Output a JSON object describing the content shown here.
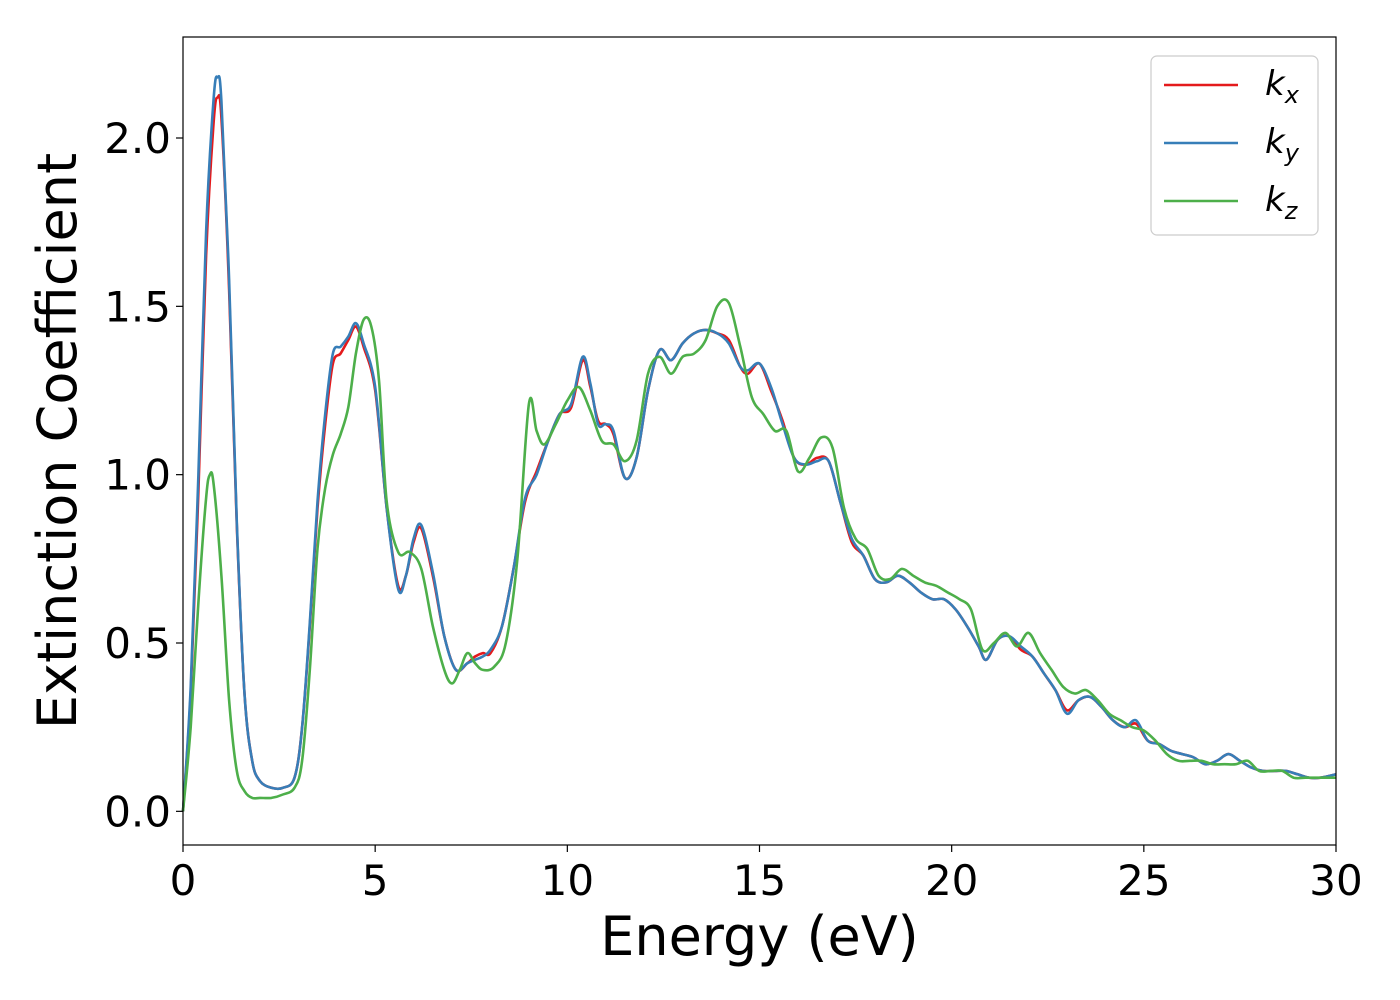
{
  "chart_data": {
    "type": "line",
    "xlabel": "Energy (eV)",
    "ylabel": "Extinction Coefficient",
    "xlim": [
      0,
      30
    ],
    "ylim": [
      -0.1,
      2.3
    ],
    "xticks": [
      0,
      5,
      10,
      15,
      20,
      25,
      30
    ],
    "xtick_labels": [
      "0",
      "5",
      "10",
      "15",
      "20",
      "25",
      "30"
    ],
    "yticks": [
      0.0,
      0.5,
      1.0,
      1.5,
      2.0
    ],
    "ytick_labels": [
      "0.0",
      "0.5",
      "1.0",
      "1.5",
      "2.0"
    ],
    "grid": false,
    "legend_position": "top-right",
    "series": [
      {
        "name": "k_x",
        "legend_main": "k",
        "legend_sub": "x",
        "color": "#e41a1c",
        "x": [
          0,
          0.2,
          0.4,
          0.6,
          0.8,
          0.9,
          1.0,
          1.2,
          1.4,
          1.6,
          1.8,
          2.0,
          2.3,
          2.6,
          2.9,
          3.1,
          3.3,
          3.5,
          3.7,
          3.9,
          4.1,
          4.3,
          4.5,
          4.7,
          5.0,
          5.3,
          5.6,
          5.8,
          6.0,
          6.2,
          6.5,
          6.8,
          7.1,
          7.4,
          7.6,
          7.8,
          8.0,
          8.3,
          8.6,
          8.9,
          9.2,
          9.5,
          9.8,
          10.1,
          10.4,
          10.6,
          10.8,
          11.0,
          11.2,
          11.5,
          11.8,
          12.1,
          12.4,
          12.7,
          13.0,
          13.3,
          13.6,
          13.9,
          14.2,
          14.5,
          14.7,
          15.0,
          15.3,
          15.6,
          15.9,
          16.2,
          16.5,
          16.8,
          17.1,
          17.4,
          17.7,
          18.0,
          18.3,
          18.6,
          18.9,
          19.2,
          19.5,
          19.8,
          20.1,
          20.4,
          20.7,
          20.9,
          21.2,
          21.5,
          21.8,
          22.1,
          22.4,
          22.7,
          23.0,
          23.3,
          23.6,
          23.9,
          24.2,
          24.5,
          24.8,
          25.1,
          25.4,
          25.7,
          26.0,
          26.3,
          26.6,
          26.9,
          27.2,
          27.5,
          27.8,
          28.1,
          28.4,
          28.7,
          29.0,
          29.3,
          29.6,
          30.0
        ],
        "values": [
          0.0,
          0.35,
          0.95,
          1.65,
          2.05,
          2.12,
          2.06,
          1.55,
          0.85,
          0.35,
          0.15,
          0.09,
          0.07,
          0.07,
          0.1,
          0.25,
          0.55,
          0.9,
          1.15,
          1.33,
          1.36,
          1.4,
          1.44,
          1.38,
          1.25,
          0.9,
          0.67,
          0.7,
          0.8,
          0.84,
          0.7,
          0.52,
          0.42,
          0.44,
          0.46,
          0.47,
          0.47,
          0.55,
          0.72,
          0.92,
          1.01,
          1.1,
          1.18,
          1.2,
          1.34,
          1.26,
          1.16,
          1.15,
          1.12,
          0.99,
          1.05,
          1.25,
          1.37,
          1.34,
          1.39,
          1.42,
          1.43,
          1.42,
          1.4,
          1.32,
          1.3,
          1.33,
          1.25,
          1.16,
          1.05,
          1.03,
          1.05,
          1.04,
          0.92,
          0.8,
          0.76,
          0.69,
          0.68,
          0.7,
          0.68,
          0.65,
          0.63,
          0.63,
          0.6,
          0.55,
          0.49,
          0.45,
          0.51,
          0.52,
          0.48,
          0.46,
          0.41,
          0.36,
          0.3,
          0.33,
          0.34,
          0.31,
          0.27,
          0.25,
          0.26,
          0.21,
          0.2,
          0.18,
          0.17,
          0.16,
          0.14,
          0.15,
          0.17,
          0.15,
          0.13,
          0.12,
          0.12,
          0.12,
          0.11,
          0.1,
          0.1,
          0.11
        ]
      },
      {
        "name": "k_y",
        "legend_main": "k",
        "legend_sub": "y",
        "color": "#377eb8",
        "x": [
          0,
          0.2,
          0.4,
          0.6,
          0.8,
          0.9,
          1.0,
          1.2,
          1.4,
          1.6,
          1.8,
          2.0,
          2.3,
          2.6,
          2.9,
          3.1,
          3.3,
          3.5,
          3.7,
          3.9,
          4.1,
          4.3,
          4.5,
          4.7,
          5.0,
          5.3,
          5.6,
          5.8,
          6.0,
          6.2,
          6.5,
          6.8,
          7.1,
          7.4,
          7.6,
          7.8,
          8.0,
          8.3,
          8.6,
          8.9,
          9.2,
          9.5,
          9.8,
          10.1,
          10.4,
          10.6,
          10.8,
          11.0,
          11.2,
          11.5,
          11.8,
          12.1,
          12.4,
          12.7,
          13.0,
          13.3,
          13.6,
          13.9,
          14.2,
          14.5,
          14.7,
          15.0,
          15.3,
          15.6,
          15.9,
          16.2,
          16.5,
          16.8,
          17.1,
          17.4,
          17.7,
          18.0,
          18.3,
          18.6,
          18.9,
          19.2,
          19.5,
          19.8,
          20.1,
          20.4,
          20.7,
          20.9,
          21.2,
          21.5,
          21.8,
          22.1,
          22.4,
          22.7,
          23.0,
          23.3,
          23.6,
          23.9,
          24.2,
          24.5,
          24.8,
          25.1,
          25.4,
          25.7,
          26.0,
          26.3,
          26.6,
          26.9,
          27.2,
          27.5,
          27.8,
          28.1,
          28.4,
          28.7,
          29.0,
          29.3,
          29.6,
          30.0
        ],
        "values": [
          0.0,
          0.37,
          1.0,
          1.72,
          2.12,
          2.18,
          2.11,
          1.58,
          0.86,
          0.35,
          0.15,
          0.09,
          0.07,
          0.07,
          0.1,
          0.25,
          0.56,
          0.92,
          1.18,
          1.36,
          1.38,
          1.41,
          1.45,
          1.39,
          1.26,
          0.9,
          0.66,
          0.7,
          0.81,
          0.85,
          0.71,
          0.52,
          0.42,
          0.44,
          0.45,
          0.46,
          0.48,
          0.55,
          0.72,
          0.93,
          1.0,
          1.1,
          1.18,
          1.21,
          1.35,
          1.27,
          1.15,
          1.15,
          1.13,
          0.99,
          1.05,
          1.25,
          1.37,
          1.34,
          1.39,
          1.42,
          1.43,
          1.42,
          1.39,
          1.32,
          1.31,
          1.33,
          1.26,
          1.15,
          1.05,
          1.03,
          1.04,
          1.04,
          0.92,
          0.81,
          0.76,
          0.69,
          0.68,
          0.7,
          0.68,
          0.65,
          0.63,
          0.63,
          0.6,
          0.55,
          0.49,
          0.45,
          0.51,
          0.52,
          0.49,
          0.46,
          0.41,
          0.36,
          0.29,
          0.33,
          0.34,
          0.31,
          0.27,
          0.25,
          0.27,
          0.21,
          0.2,
          0.18,
          0.17,
          0.16,
          0.14,
          0.15,
          0.17,
          0.15,
          0.13,
          0.12,
          0.12,
          0.12,
          0.11,
          0.1,
          0.1,
          0.11
        ]
      },
      {
        "name": "k_z",
        "legend_main": "k",
        "legend_sub": "z",
        "color": "#4daf4a",
        "x": [
          0,
          0.2,
          0.4,
          0.6,
          0.7,
          0.8,
          1.0,
          1.2,
          1.4,
          1.6,
          1.8,
          2.0,
          2.3,
          2.6,
          2.9,
          3.1,
          3.3,
          3.5,
          3.7,
          3.9,
          4.1,
          4.3,
          4.5,
          4.7,
          4.9,
          5.1,
          5.3,
          5.6,
          5.9,
          6.2,
          6.5,
          6.8,
          7.0,
          7.2,
          7.4,
          7.6,
          7.8,
          8.1,
          8.4,
          8.7,
          9.0,
          9.2,
          9.4,
          9.7,
          10.0,
          10.3,
          10.6,
          10.9,
          11.2,
          11.5,
          11.8,
          12.1,
          12.4,
          12.7,
          13.0,
          13.3,
          13.6,
          13.9,
          14.2,
          14.5,
          14.8,
          15.1,
          15.4,
          15.7,
          16.0,
          16.3,
          16.6,
          16.9,
          17.2,
          17.5,
          17.8,
          18.1,
          18.4,
          18.7,
          19.0,
          19.3,
          19.6,
          19.9,
          20.2,
          20.5,
          20.8,
          21.1,
          21.4,
          21.7,
          22.0,
          22.3,
          22.6,
          22.9,
          23.2,
          23.5,
          23.8,
          24.1,
          24.4,
          24.7,
          25.0,
          25.3,
          25.6,
          25.9,
          26.2,
          26.5,
          26.8,
          27.1,
          27.4,
          27.7,
          28.0,
          28.3,
          28.6,
          28.9,
          29.2,
          29.5,
          30.0
        ],
        "values": [
          0.0,
          0.25,
          0.62,
          0.93,
          1.0,
          0.97,
          0.7,
          0.33,
          0.12,
          0.06,
          0.04,
          0.04,
          0.04,
          0.05,
          0.07,
          0.15,
          0.42,
          0.78,
          0.96,
          1.06,
          1.12,
          1.2,
          1.36,
          1.46,
          1.44,
          1.28,
          0.92,
          0.77,
          0.77,
          0.72,
          0.55,
          0.42,
          0.38,
          0.42,
          0.47,
          0.44,
          0.42,
          0.43,
          0.5,
          0.75,
          1.21,
          1.13,
          1.09,
          1.15,
          1.22,
          1.26,
          1.19,
          1.1,
          1.09,
          1.04,
          1.1,
          1.3,
          1.35,
          1.3,
          1.35,
          1.36,
          1.4,
          1.5,
          1.51,
          1.38,
          1.23,
          1.18,
          1.13,
          1.13,
          1.01,
          1.05,
          1.11,
          1.08,
          0.9,
          0.81,
          0.78,
          0.7,
          0.69,
          0.72,
          0.7,
          0.68,
          0.67,
          0.65,
          0.63,
          0.6,
          0.48,
          0.5,
          0.53,
          0.49,
          0.53,
          0.47,
          0.42,
          0.37,
          0.35,
          0.36,
          0.33,
          0.29,
          0.27,
          0.25,
          0.24,
          0.21,
          0.17,
          0.15,
          0.15,
          0.15,
          0.14,
          0.14,
          0.14,
          0.15,
          0.12,
          0.12,
          0.12,
          0.1,
          0.1,
          0.1,
          0.1
        ]
      }
    ]
  }
}
